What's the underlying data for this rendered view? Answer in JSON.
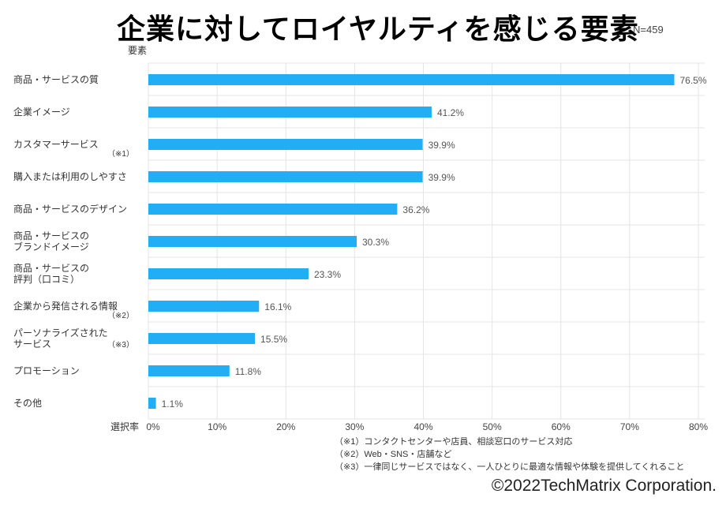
{
  "chart_data": {
    "type": "bar",
    "orientation": "horizontal",
    "title": "企業に対してロイヤルティを感じる要素",
    "sample_size": "N=459",
    "ylabel": "要素",
    "xlabel": "選択率",
    "xlim": [
      0,
      80
    ],
    "x_ticks": [
      "0%",
      "10%",
      "20%",
      "30%",
      "40%",
      "50%",
      "60%",
      "70%",
      "80%"
    ],
    "grid": true,
    "bar_color": "#22AEF5",
    "categories": [
      {
        "lines": [
          "商品・サービスの質"
        ],
        "note": ""
      },
      {
        "lines": [
          "企業イメージ"
        ],
        "note": ""
      },
      {
        "lines": [
          "カスタマーサービス"
        ],
        "note": "（※1）"
      },
      {
        "lines": [
          "購入または利用のしやすさ"
        ],
        "note": ""
      },
      {
        "lines": [
          "商品・サービスのデザイン"
        ],
        "note": ""
      },
      {
        "lines": [
          "商品・サービスの",
          "ブランドイメージ"
        ],
        "note": ""
      },
      {
        "lines": [
          "商品・サービスの",
          "評判（口コミ）"
        ],
        "note": ""
      },
      {
        "lines": [
          "企業から発信される情報"
        ],
        "note": "（※2）"
      },
      {
        "lines": [
          "パーソナライズされた",
          "サービス"
        ],
        "note": "（※3）"
      },
      {
        "lines": [
          "プロモーション"
        ],
        "note": ""
      },
      {
        "lines": [
          "その他"
        ],
        "note": ""
      }
    ],
    "values": [
      76.5,
      41.2,
      39.9,
      39.9,
      36.2,
      30.3,
      23.3,
      16.1,
      15.5,
      11.8,
      1.1
    ],
    "data_labels": [
      "76.5%",
      "41.2%",
      "39.9%",
      "39.9%",
      "36.2%",
      "30.3%",
      "23.3%",
      "16.1%",
      "15.5%",
      "11.8%",
      "1.1%"
    ]
  },
  "notes": [
    "（※1）コンタクトセンターや店員、相談窓口のサービス対応",
    "（※2）Web・SNS・店舗など",
    "（※3）一律同じサービスではなく、一人ひとりに最適な情報や体験を提供してくれること"
  ],
  "copyright": "©2022TechMatrix Corporation."
}
